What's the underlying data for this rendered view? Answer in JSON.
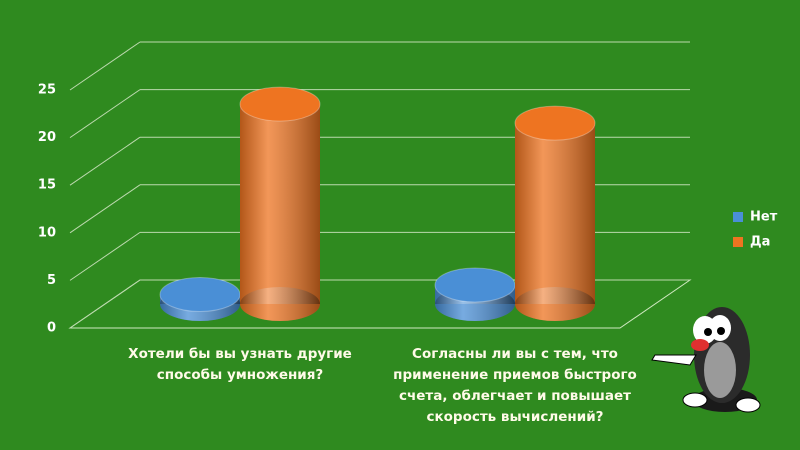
{
  "chart_data": {
    "type": "bar3d",
    "categories": [
      "Хотели бы вы узнать другие способы умножения?",
      "Согласны ли вы с тем, что применение приемов быстрого счета, облегчает и повышает скорость вычислений?"
    ],
    "series": [
      {
        "name": "Нет",
        "color": "#4a8fd6",
        "values": [
          1,
          2
        ]
      },
      {
        "name": "Да",
        "color": "#ee7421",
        "values": [
          21,
          19
        ]
      }
    ],
    "ylim": [
      0,
      25
    ],
    "yticks": [
      0,
      5,
      10,
      15,
      20,
      25
    ],
    "grid": true,
    "legend": "right"
  }
}
